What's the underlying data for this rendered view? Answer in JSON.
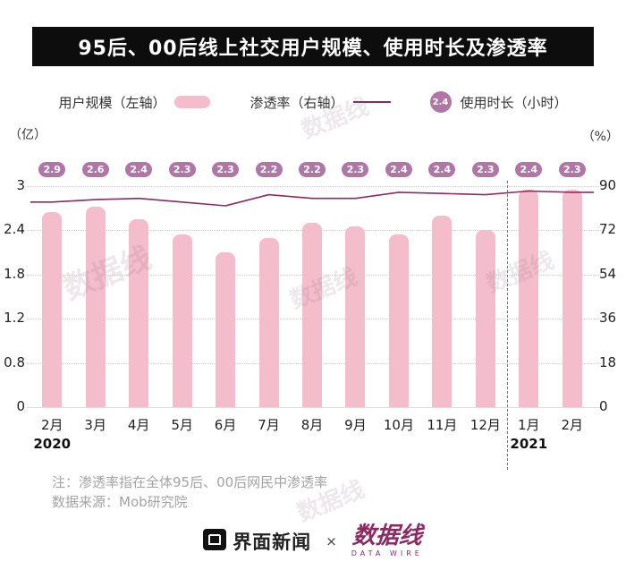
{
  "title": "95后、00后线上社交用户规模、使用时长及渗透率",
  "legend": {
    "bar_label": "用户规模（左轴）",
    "line_label": "渗透率（右轴）",
    "duration_badge": "2.4",
    "duration_label": "使用时长（小时）"
  },
  "axes": {
    "left_unit": "（亿）",
    "right_unit": "（%）",
    "left_ticks": [
      "3",
      "2.4",
      "1.8",
      "1.2",
      "0.8",
      "0"
    ],
    "right_ticks": [
      "90",
      "72",
      "54",
      "36",
      "18",
      "0"
    ]
  },
  "chart_data": {
    "type": "combo",
    "categories": [
      "2月",
      "3月",
      "4月",
      "5月",
      "6月",
      "7月",
      "8月",
      "9月",
      "10月",
      "11月",
      "12月",
      "1月",
      "2月"
    ],
    "year_labels": [
      {
        "index": 0,
        "label": "2020"
      },
      {
        "index": 11,
        "label": "2021"
      }
    ],
    "year_divider_index": 11,
    "series": [
      {
        "name": "用户规模（左轴）",
        "type": "bar",
        "axis": "left",
        "values": [
          2.65,
          2.72,
          2.55,
          2.35,
          2.1,
          2.3,
          2.5,
          2.45,
          2.35,
          2.6,
          2.4,
          2.95,
          2.95
        ]
      },
      {
        "name": "渗透率（右轴）",
        "type": "line",
        "axis": "right",
        "values": [
          83.5,
          84.5,
          85,
          83.5,
          82,
          86.5,
          85,
          85,
          87.5,
          87,
          86.5,
          88,
          87.5
        ]
      },
      {
        "name": "使用时长（小时）",
        "type": "badge",
        "values": [
          "2.9",
          "2.6",
          "2.4",
          "2.3",
          "2.3",
          "2.2",
          "2.2",
          "2.3",
          "2.4",
          "2.4",
          "2.3",
          "2.4",
          "2.3"
        ]
      }
    ],
    "left_ylim": [
      0,
      3
    ],
    "right_ylim": [
      0,
      90
    ],
    "grid": "dotted-horizontal",
    "legend_position": "top"
  },
  "notes": [
    "注：渗透率指在全体95后、00后网民中渗透率",
    "数据来源：Mob研究院"
  ],
  "footer": {
    "jiemian": "界面新闻",
    "times": "×",
    "datawire": "数据线",
    "datawire_sub": "DATA WIRE"
  },
  "watermark": "数据线",
  "colors": {
    "bar": "#F3BDCB",
    "line": "#8C2A63",
    "badge": "#B077A6",
    "title_bg": "#0d0d0d"
  }
}
